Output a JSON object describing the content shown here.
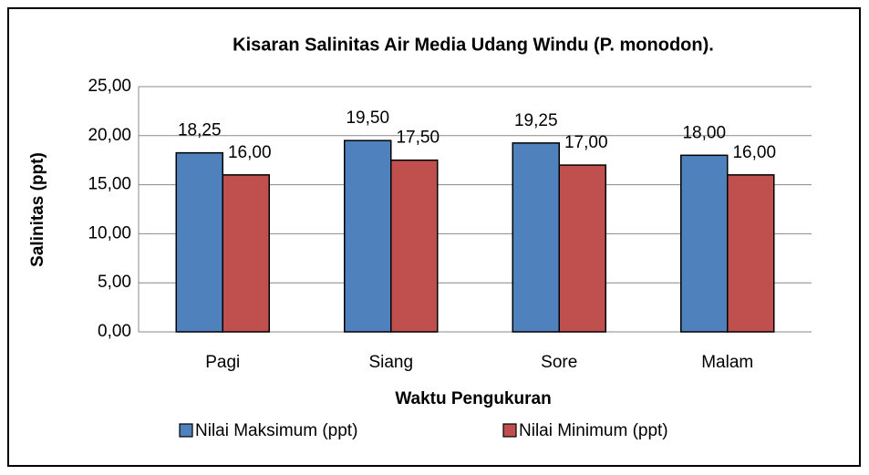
{
  "chart_data": {
    "type": "bar",
    "title": "Kisaran Salinitas Air Media Udang Windu (P. monodon).",
    "xlabel": "Waktu Pengukuran",
    "ylabel": "Salinitas (ppt)",
    "categories": [
      "Pagi",
      "Siang",
      "Sore",
      "Malam"
    ],
    "series": [
      {
        "name": "Nilai Maksimum (ppt)",
        "color": "#4f81bd",
        "values": [
          18.25,
          19.5,
          19.25,
          18.0
        ],
        "value_labels": [
          "18,25",
          "19,50",
          "19,25",
          "18,00"
        ]
      },
      {
        "name": "Nilai Minimum (ppt)",
        "color": "#c0504d",
        "values": [
          16.0,
          17.5,
          17.0,
          16.0
        ],
        "value_labels": [
          "16,00",
          "17,50",
          "17,00",
          "16,00"
        ]
      }
    ],
    "ylim": [
      0,
      25
    ],
    "yticks": [
      {
        "value": 0,
        "label": "0,00"
      },
      {
        "value": 5,
        "label": "5,00"
      },
      {
        "value": 10,
        "label": "10,00"
      },
      {
        "value": 15,
        "label": "15,00"
      },
      {
        "value": 20,
        "label": "20,00"
      },
      {
        "value": 25,
        "label": "25,00"
      }
    ],
    "grid": true,
    "legend": "bottom"
  }
}
